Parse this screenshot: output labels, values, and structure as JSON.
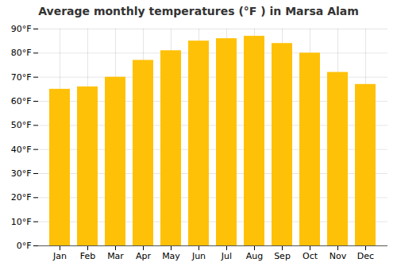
{
  "chart_data": {
    "type": "bar",
    "title": "Average monthly temperatures (°F ) in Marsa Alam",
    "categories": [
      "Jan",
      "Feb",
      "Mar",
      "Apr",
      "May",
      "Jun",
      "Jul",
      "Aug",
      "Sep",
      "Oct",
      "Nov",
      "Dec"
    ],
    "values": [
      65,
      66,
      70,
      77,
      81,
      85,
      86,
      87,
      84,
      80,
      72,
      67
    ],
    "color": "#FFC107",
    "ylim": [
      0,
      90
    ],
    "yticks": [
      {
        "value": 0,
        "label": "0°F"
      },
      {
        "value": 10,
        "label": "10°F"
      },
      {
        "value": 20,
        "label": "20°F"
      },
      {
        "value": 30,
        "label": "30°F"
      },
      {
        "value": 40,
        "label": "40°F"
      },
      {
        "value": 50,
        "label": "50°F"
      },
      {
        "value": 60,
        "label": "60°F"
      },
      {
        "value": 70,
        "label": "70°F"
      },
      {
        "value": 80,
        "label": "80°F"
      },
      {
        "value": 90,
        "label": "90°F"
      }
    ],
    "grid": true
  }
}
